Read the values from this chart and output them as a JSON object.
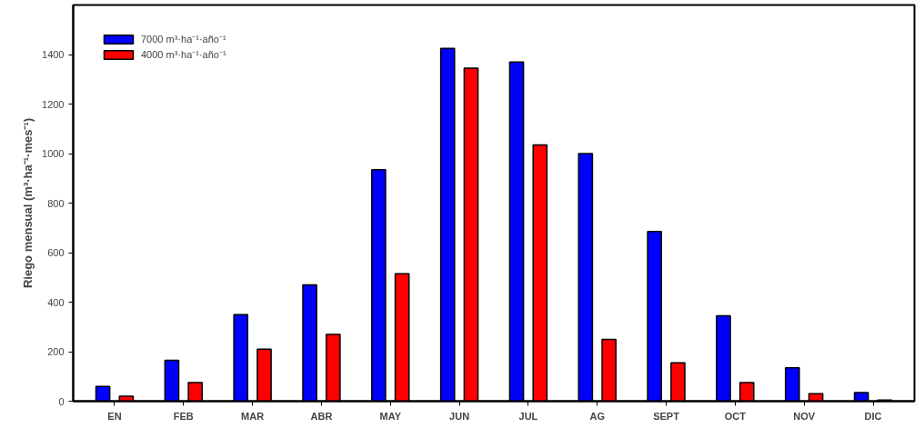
{
  "chart_data": {
    "type": "bar",
    "ylabel": "Riego mensual (m³·ha⁻¹·mes⁻¹)",
    "categories": [
      "EN",
      "FEB",
      "MAR",
      "ABR",
      "MAY",
      "JUN",
      "JUL",
      "AG",
      "SEPT",
      "OCT",
      "NOV",
      "DIC"
    ],
    "series": [
      {
        "name": "7000 m³·ha⁻¹·año⁻¹",
        "color": "#0000ff",
        "values": [
          60,
          165,
          350,
          470,
          935,
          1425,
          1370,
          1000,
          685,
          345,
          135,
          35
        ]
      },
      {
        "name": "4000 m³·ha⁻¹·año⁻¹",
        "color": "#ff0000",
        "values": [
          20,
          75,
          210,
          270,
          515,
          1345,
          1035,
          250,
          155,
          75,
          30,
          5
        ]
      }
    ],
    "ylim": [
      0,
      1600
    ],
    "yticks": [
      0,
      200,
      400,
      600,
      800,
      1000,
      1200,
      1400
    ],
    "grid": false,
    "legend": "top left"
  }
}
